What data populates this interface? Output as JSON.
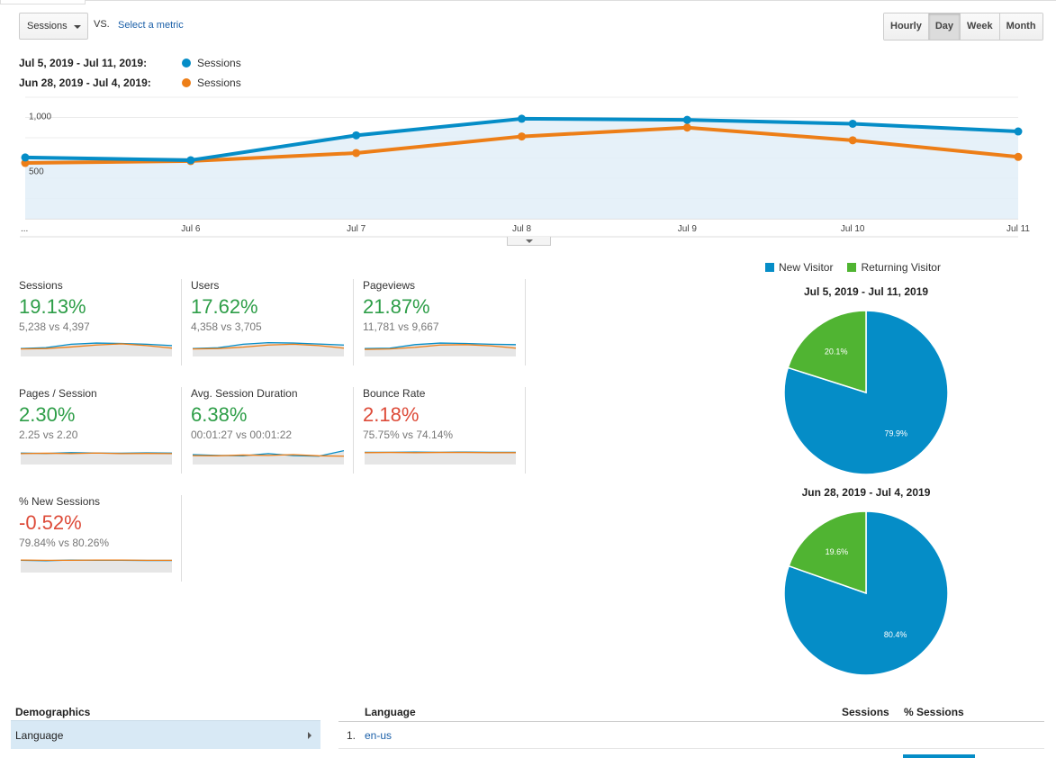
{
  "toolbar": {
    "metric_select": "Sessions",
    "vs_label": "VS.",
    "select_metric_link": "Select a metric",
    "period_buttons": [
      "Hourly",
      "Day",
      "Week",
      "Month"
    ],
    "active_period": "Day"
  },
  "legend": [
    {
      "range": "Jul 5, 2019 - Jul 11, 2019:",
      "series": "Sessions",
      "color": "#058dc7"
    },
    {
      "range": "Jun 28, 2019 - Jul 4, 2019:",
      "series": "Sessions",
      "color": "#ed7e17"
    }
  ],
  "chart_data": {
    "type": "line",
    "x": [
      "...",
      "Jul 6",
      "Jul 7",
      "Jul 8",
      "Jul 9",
      "Jul 10",
      "Jul 11"
    ],
    "y_ticks": [
      "1,000",
      "500"
    ],
    "y_tick_values": [
      1000,
      500
    ],
    "ylim": [
      0,
      1100
    ],
    "series": [
      {
        "name": "Sessions",
        "color": "#058dc7",
        "values": [
          555,
          530,
          755,
          905,
          895,
          860,
          790
        ]
      },
      {
        "name": "Sessions",
        "color": "#ed7e17",
        "values": [
          505,
          522,
          595,
          745,
          825,
          710,
          560
        ]
      }
    ],
    "grid": true
  },
  "tiles": [
    {
      "label": "Sessions",
      "pct": "19.13%",
      "dir": "up",
      "cmp": "5,238 vs 4,397",
      "a": [
        0.4,
        0.45,
        0.62,
        0.68,
        0.66,
        0.62,
        0.55
      ],
      "b": [
        0.38,
        0.4,
        0.48,
        0.58,
        0.64,
        0.55,
        0.42
      ]
    },
    {
      "label": "Users",
      "pct": "17.62%",
      "dir": "up",
      "cmp": "4,358 vs 3,705",
      "a": [
        0.4,
        0.44,
        0.62,
        0.7,
        0.68,
        0.63,
        0.58
      ],
      "b": [
        0.38,
        0.4,
        0.47,
        0.58,
        0.62,
        0.55,
        0.42
      ]
    },
    {
      "label": "Pageviews",
      "pct": "21.87%",
      "dir": "up",
      "cmp": "11,781 vs 9,667",
      "a": [
        0.4,
        0.42,
        0.6,
        0.68,
        0.66,
        0.62,
        0.6
      ],
      "b": [
        0.36,
        0.38,
        0.46,
        0.58,
        0.6,
        0.54,
        0.42
      ]
    },
    {
      "label": "Pages / Session",
      "pct": "2.30%",
      "dir": "up",
      "cmp": "2.25 vs 2.20",
      "a": [
        0.58,
        0.56,
        0.6,
        0.58,
        0.57,
        0.59,
        0.58
      ],
      "b": [
        0.55,
        0.57,
        0.55,
        0.58,
        0.55,
        0.56,
        0.55
      ]
    },
    {
      "label": "Avg. Session Duration",
      "pct": "6.38%",
      "dir": "up",
      "cmp": "00:01:27 vs 00:01:22",
      "a": [
        0.5,
        0.46,
        0.44,
        0.55,
        0.45,
        0.42,
        0.7
      ],
      "b": [
        0.45,
        0.44,
        0.48,
        0.46,
        0.5,
        0.44,
        0.42
      ]
    },
    {
      "label": "Bounce Rate",
      "pct": "2.18%",
      "dir": "down",
      "cmp": "75.75% vs 74.14%",
      "a": [
        0.62,
        0.62,
        0.63,
        0.62,
        0.63,
        0.62,
        0.62
      ],
      "b": [
        0.6,
        0.61,
        0.6,
        0.61,
        0.61,
        0.6,
        0.6
      ]
    },
    {
      "label": "% New Sessions",
      "pct": "-0.52%",
      "dir": "down",
      "cmp": "79.84% vs 80.26%",
      "a": [
        0.62,
        0.6,
        0.63,
        0.62,
        0.62,
        0.61,
        0.61
      ],
      "b": [
        0.63,
        0.62,
        0.62,
        0.63,
        0.63,
        0.62,
        0.62
      ]
    }
  ],
  "pie_legend": [
    {
      "label": "New Visitor",
      "color": "#058dc7"
    },
    {
      "label": "Returning Visitor",
      "color": "#50b432"
    }
  ],
  "pies": [
    {
      "title": "Jul 5, 2019 - Jul 11, 2019",
      "new": 79.9,
      "ret": 20.1,
      "new_label": "79.9%",
      "ret_label": "20.1%"
    },
    {
      "title": "Jun 28, 2019 - Jul 4, 2019",
      "new": 80.4,
      "ret": 19.6,
      "new_label": "80.4%",
      "ret_label": "19.6%"
    }
  ],
  "demographics": {
    "heading": "Demographics",
    "selected_item": "Language"
  },
  "table": {
    "col_language": "Language",
    "col_sessions": "Sessions",
    "col_pct_sessions": "% Sessions",
    "rows": [
      {
        "index": "1.",
        "language": "en-us"
      }
    ]
  }
}
